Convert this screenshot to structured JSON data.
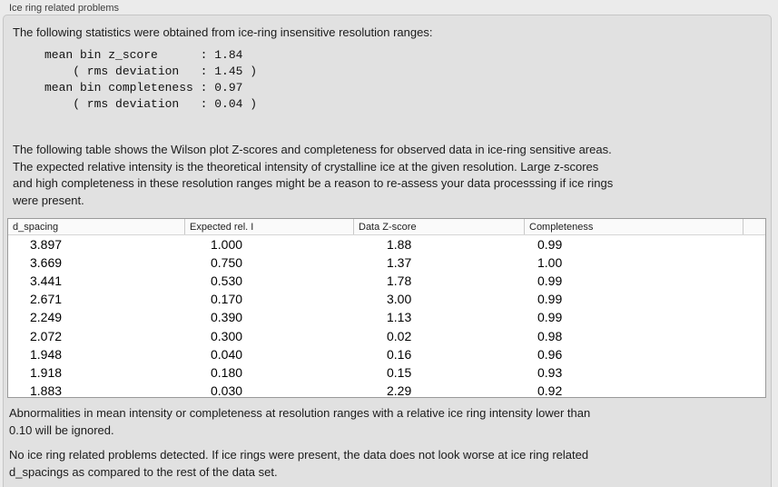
{
  "panel": {
    "title": "Ice ring related problems"
  },
  "stats": {
    "intro": "The following statistics were obtained from ice-ring insensitive resolution ranges:",
    "summary": "mean bin z_score      : 1.84\n    ( rms deviation   : 1.45 )\nmean bin completeness : 0.97\n    ( rms deviation   : 0.04 )"
  },
  "description": "The following table shows the Wilson plot Z-scores and completeness for observed data in ice-ring sensitive areas.\nThe expected relative intensity is the theoretical intensity of crystalline ice at the given resolution. Large z-scores\nand high completeness in these resolution ranges might be a reason to re-assess your data processsing if ice rings\nwere present.",
  "table": {
    "headers": [
      "d_spacing",
      "Expected rel. I",
      "Data Z-score",
      "Completeness"
    ],
    "rows": [
      [
        "3.897",
        "1.000",
        "1.88",
        "0.99"
      ],
      [
        "3.669",
        "0.750",
        "1.37",
        "1.00"
      ],
      [
        "3.441",
        "0.530",
        "1.78",
        "0.99"
      ],
      [
        "2.671",
        "0.170",
        "3.00",
        "0.99"
      ],
      [
        "2.249",
        "0.390",
        "1.13",
        "0.99"
      ],
      [
        "2.072",
        "0.300",
        "0.02",
        "0.98"
      ],
      [
        "1.948",
        "0.040",
        "0.16",
        "0.96"
      ],
      [
        "1.918",
        "0.180",
        "0.15",
        "0.93"
      ],
      [
        "1.883",
        "0.030",
        "2.29",
        "0.92"
      ]
    ]
  },
  "notes": {
    "threshold": "Abnormalities in mean intensity or completeness at resolution ranges with a relative ice ring intensity lower than\n0.10 will be ignored.",
    "conclusion": "No ice ring related problems detected. If ice rings were present, the data does not look worse at ice ring related\nd_spacings as compared to the rest of the data set."
  }
}
